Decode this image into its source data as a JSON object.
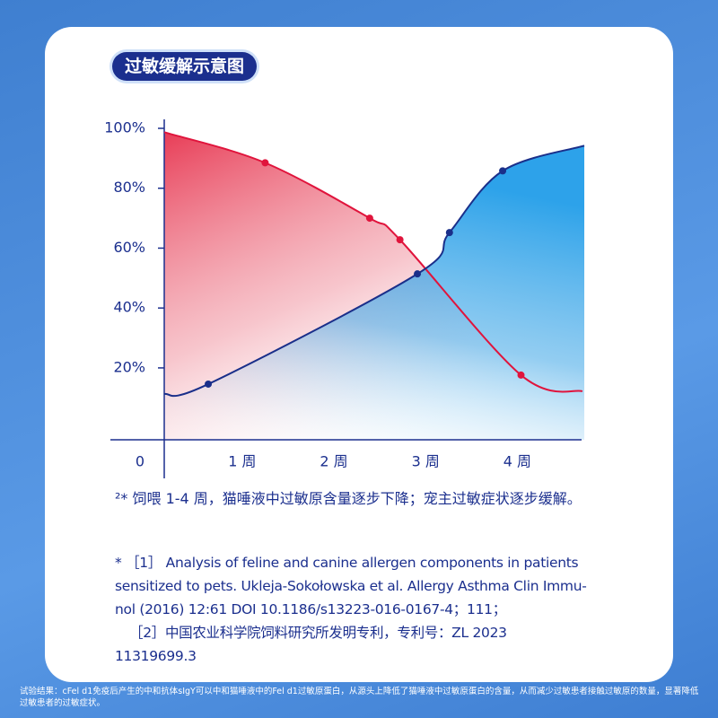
{
  "chart_data": {
    "type": "line",
    "title": "过敏缓解示意图",
    "series": [
      {
        "color": "#e0143c",
        "x": [
          0.15,
          1.25,
          2.39,
          2.72,
          4.04,
          4.71
        ],
        "values": [
          98.7,
          88.5,
          70,
          62.8,
          17.6,
          12.2
        ]
      },
      {
        "color": "#1a2f8a",
        "x": [
          0.15,
          0.63,
          2.91,
          3.26,
          3.84,
          4.73
        ],
        "values": [
          11.3,
          14.6,
          51.4,
          65.2,
          85.8,
          94.2
        ]
      }
    ],
    "xlim": [
      0.15,
      4.72
    ],
    "xticks": [
      0,
      {
        "value": 1,
        "label": "1 周"
      },
      {
        "value": 2,
        "label": "2 周"
      },
      {
        "value": 3,
        "label": "3 周"
      },
      {
        "value": 4,
        "label": "4 周"
      }
    ],
    "ylim": [
      -4,
      100
    ],
    "yticks": [
      {
        "value": 20,
        "label": "20%"
      },
      {
        "value": 40,
        "label": "40%"
      },
      {
        "value": 60,
        "label": "60%"
      },
      {
        "value": 80,
        "label": "80%"
      },
      {
        "value": 100,
        "label": "100%"
      }
    ]
  },
  "footnote": "²* 饲喂 1-4 周，猫唾液中过敏原含量逐步下降；宠主过敏症状逐步缓解。",
  "references": [
    "* ［1］ Analysis of feline and canine allergen components in patients",
    "sensitized to pets. Ukleja-Sokołowska et al. Allergy Asthma Clin Immu-",
    "nol (2016) 12:61 DOI 10.1186/s13223-016-0167-4；111；",
    "［2］中国农业科学院饲料研究所发明专利，专利号：ZL 2023",
    "11319699.3"
  ],
  "disclaimer": "试验结果：cFel d1免疫后产生的中和抗体sIgY可以中和猫唾液中的Fel d1过敏原蛋白，从源头上降低了猫唾液中过敏原蛋白的含量，从而减少过敏患者接触过敏原的数量，显著降低过敏患者的过敏症状。"
}
